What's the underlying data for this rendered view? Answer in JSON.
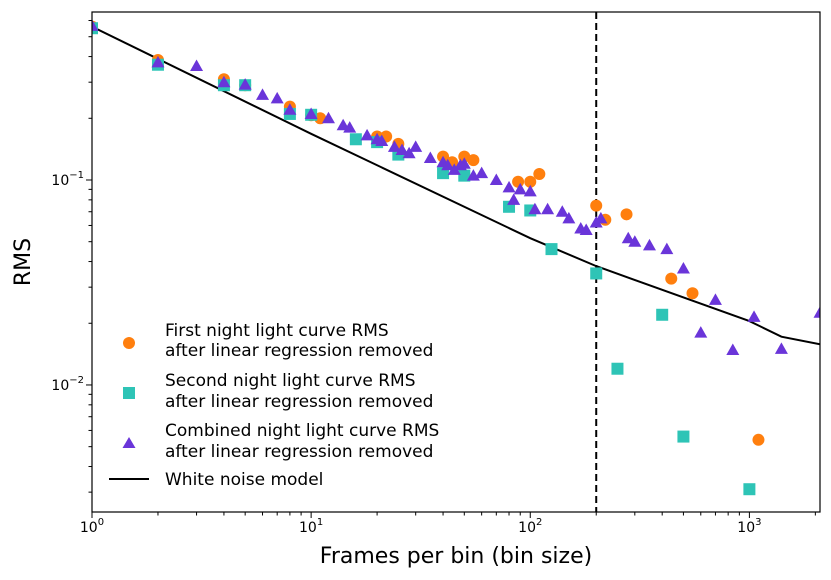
{
  "chart_data": {
    "type": "scatter",
    "title": "",
    "xlabel": "Frames per bin (bin size)",
    "ylabel": "RMS",
    "xscale": "log",
    "yscale": "log",
    "xlim": [
      1,
      2100
    ],
    "ylim": [
      0.0024,
      0.66
    ],
    "x_ticks": [
      {
        "value": 1,
        "base": "10",
        "exp": "0"
      },
      {
        "value": 10,
        "base": "10",
        "exp": "1"
      },
      {
        "value": 100,
        "base": "10",
        "exp": "2"
      },
      {
        "value": 1000,
        "base": "10",
        "exp": "3"
      }
    ],
    "y_ticks": [
      {
        "value": 0.01,
        "base": "10",
        "exp": "−2"
      },
      {
        "value": 0.1,
        "base": "10",
        "exp": "−1"
      }
    ],
    "vline": {
      "x": 200,
      "style": "dashed",
      "color": "#000000"
    },
    "series": [
      {
        "name": "First night light curve RMS after linear regression removed",
        "label_lines": [
          "First night light curve RMS",
          "after linear regression removed"
        ],
        "marker": "circle",
        "color": "#ff7f0e",
        "points": [
          [
            1,
            0.56
          ],
          [
            2,
            0.385
          ],
          [
            4,
            0.31
          ],
          [
            5,
            0.29
          ],
          [
            8,
            0.228
          ],
          [
            10,
            0.207
          ],
          [
            11,
            0.2
          ],
          [
            20,
            0.163
          ],
          [
            22,
            0.163
          ],
          [
            25,
            0.15
          ],
          [
            40,
            0.13
          ],
          [
            44,
            0.122
          ],
          [
            50,
            0.13
          ],
          [
            55,
            0.125
          ],
          [
            88,
            0.098
          ],
          [
            100,
            0.098
          ],
          [
            110,
            0.107
          ],
          [
            200,
            0.075
          ],
          [
            220,
            0.064
          ],
          [
            275,
            0.068
          ],
          [
            440,
            0.033
          ],
          [
            550,
            0.028
          ],
          [
            1100,
            0.0054
          ]
        ]
      },
      {
        "name": "Second night light curve RMS after linear regression removed",
        "label_lines": [
          "Second night light curve RMS",
          "after linear regression removed"
        ],
        "marker": "square",
        "color": "#2ec4b6",
        "points": [
          [
            1,
            0.55
          ],
          [
            2,
            0.365
          ],
          [
            4,
            0.29
          ],
          [
            5,
            0.29
          ],
          [
            8,
            0.21
          ],
          [
            10,
            0.208
          ],
          [
            16,
            0.158
          ],
          [
            20,
            0.153
          ],
          [
            25,
            0.133
          ],
          [
            40,
            0.108
          ],
          [
            50,
            0.105
          ],
          [
            80,
            0.074
          ],
          [
            100,
            0.071
          ],
          [
            125,
            0.046
          ],
          [
            200,
            0.035
          ],
          [
            250,
            0.012
          ],
          [
            400,
            0.022
          ],
          [
            500,
            0.0056
          ],
          [
            1000,
            0.0031
          ]
        ]
      },
      {
        "name": "Combined night light curve RMS after linear regression removed",
        "label_lines": [
          "Combined night light curve RMS",
          "after linear regression removed"
        ],
        "marker": "triangle",
        "color": "#6a35d9",
        "points": [
          [
            1,
            0.565
          ],
          [
            2,
            0.375
          ],
          [
            3,
            0.36
          ],
          [
            4,
            0.3
          ],
          [
            5,
            0.292
          ],
          [
            6,
            0.26
          ],
          [
            7,
            0.25
          ],
          [
            8,
            0.22
          ],
          [
            10,
            0.21
          ],
          [
            12,
            0.2
          ],
          [
            14,
            0.185
          ],
          [
            15,
            0.18
          ],
          [
            18,
            0.165
          ],
          [
            20,
            0.158
          ],
          [
            21,
            0.155
          ],
          [
            24,
            0.145
          ],
          [
            26,
            0.14
          ],
          [
            28,
            0.135
          ],
          [
            30,
            0.145
          ],
          [
            35,
            0.128
          ],
          [
            40,
            0.122
          ],
          [
            42,
            0.118
          ],
          [
            45,
            0.112
          ],
          [
            48,
            0.118
          ],
          [
            50,
            0.12
          ],
          [
            55,
            0.105
          ],
          [
            60,
            0.108
          ],
          [
            70,
            0.1
          ],
          [
            80,
            0.092
          ],
          [
            84,
            0.08
          ],
          [
            90,
            0.09
          ],
          [
            100,
            0.088
          ],
          [
            105,
            0.072
          ],
          [
            120,
            0.072
          ],
          [
            140,
            0.07
          ],
          [
            150,
            0.065
          ],
          [
            170,
            0.058
          ],
          [
            180,
            0.057
          ],
          [
            200,
            0.062
          ],
          [
            210,
            0.065
          ],
          [
            280,
            0.052
          ],
          [
            300,
            0.05
          ],
          [
            350,
            0.048
          ],
          [
            420,
            0.046
          ],
          [
            500,
            0.037
          ],
          [
            600,
            0.018
          ],
          [
            700,
            0.026
          ],
          [
            840,
            0.0148
          ],
          [
            1050,
            0.0215
          ],
          [
            1400,
            0.015
          ],
          [
            2100,
            0.0225
          ]
        ]
      }
    ],
    "model_line": {
      "name": "White noise model",
      "color": "#000000",
      "points": [
        [
          1,
          0.56
        ],
        [
          10,
          0.168
        ],
        [
          100,
          0.052
        ],
        [
          200,
          0.038
        ],
        [
          1000,
          0.0205
        ],
        [
          1400,
          0.0172
        ],
        [
          2100,
          0.0158
        ]
      ]
    }
  }
}
